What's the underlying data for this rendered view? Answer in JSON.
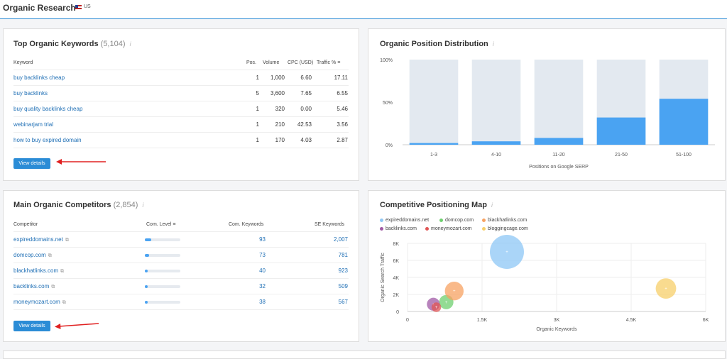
{
  "header": {
    "title": "Organic Research",
    "flag_label": "US"
  },
  "keywords_panel": {
    "title": "Top Organic Keywords",
    "count": "(5,104)",
    "info": "i",
    "columns": {
      "keyword": "Keyword",
      "pos": "Pos.",
      "volume": "Volume",
      "cpc": "CPC (USD)",
      "traffic": "Traffic %"
    },
    "rows": [
      {
        "keyword": "buy backlinks cheap",
        "pos": "1",
        "volume": "1,000",
        "cpc": "6.60",
        "traffic": "17.11"
      },
      {
        "keyword": "buy backlinks",
        "pos": "5",
        "volume": "3,600",
        "cpc": "7.65",
        "traffic": "6.55"
      },
      {
        "keyword": "buy quality backlinks cheap",
        "pos": "1",
        "volume": "320",
        "cpc": "0.00",
        "traffic": "5.46"
      },
      {
        "keyword": "webinarjam trial",
        "pos": "1",
        "volume": "210",
        "cpc": "42.53",
        "traffic": "3.56"
      },
      {
        "keyword": "how to buy expired domain",
        "pos": "1",
        "volume": "170",
        "cpc": "4.03",
        "traffic": "2.87"
      }
    ],
    "button": "View details"
  },
  "competitors_panel": {
    "title": "Main Organic Competitors",
    "count": "(2,854)",
    "info": "i",
    "columns": {
      "competitor": "Competitor",
      "level": "Com. Level",
      "com_keywords": "Com. Keywords",
      "se_keywords": "SE Keywords"
    },
    "rows": [
      {
        "domain": "expireddomains.net",
        "level": 0.18,
        "com": "93",
        "se": "2,007"
      },
      {
        "domain": "domcop.com",
        "level": 0.12,
        "com": "73",
        "se": "781"
      },
      {
        "domain": "blackhatlinks.com",
        "level": 0.08,
        "com": "40",
        "se": "923"
      },
      {
        "domain": "backlinks.com",
        "level": 0.07,
        "com": "32",
        "se": "509"
      },
      {
        "domain": "moneymozart.com",
        "level": 0.08,
        "com": "38",
        "se": "567"
      }
    ],
    "button": "View details"
  },
  "distribution_panel": {
    "title": "Organic Position Distribution",
    "info": "i"
  },
  "map_panel": {
    "title": "Competitive Positioning Map",
    "info": "i"
  },
  "colors": {
    "accent": "#2b8cd6",
    "bar": "#4aa3f2",
    "bar_bg": "#e3e9f0",
    "arrow": "#e02020"
  },
  "chart_data": [
    {
      "type": "bar",
      "categories": [
        "1-3",
        "4-10",
        "11-20",
        "21-50",
        "51-100"
      ],
      "values": [
        2,
        4,
        8,
        32,
        54
      ],
      "yticks": [
        "100%",
        "50%",
        "0%"
      ],
      "ylim": [
        0,
        100
      ],
      "xlabel": "Positions on Google SERP",
      "ylabel": "",
      "grid": false
    },
    {
      "type": "scatter",
      "xlabel": "Organic Keywords",
      "ylabel": "Organic Search Traffic",
      "xlim": [
        0,
        6000
      ],
      "ylim": [
        0,
        8000
      ],
      "xticks": [
        "0",
        "1.5K",
        "3K",
        "4.5K",
        "6K"
      ],
      "yticks": [
        "8K",
        "6K",
        "4K",
        "2K",
        "0"
      ],
      "legend_position": "top-left",
      "series": [
        {
          "name": "expireddomains.net",
          "color": "#8ec7f5",
          "x": 2000,
          "y": 7000,
          "size": 1.0
        },
        {
          "name": "domcop.com",
          "color": "#6fcf6f",
          "x": 780,
          "y": 1100,
          "size": 0.42
        },
        {
          "name": "blackhatlinks.com",
          "color": "#f7a262",
          "x": 940,
          "y": 2400,
          "size": 0.55
        },
        {
          "name": "backlinks.com",
          "color": "#a05aa5",
          "x": 520,
          "y": 850,
          "size": 0.38
        },
        {
          "name": "moneymozart.com",
          "color": "#e05555",
          "x": 580,
          "y": 500,
          "size": 0.28
        },
        {
          "name": "bloggingcage.com",
          "color": "#f7cf6a",
          "x": 5200,
          "y": 2700,
          "size": 0.6
        }
      ]
    }
  ]
}
